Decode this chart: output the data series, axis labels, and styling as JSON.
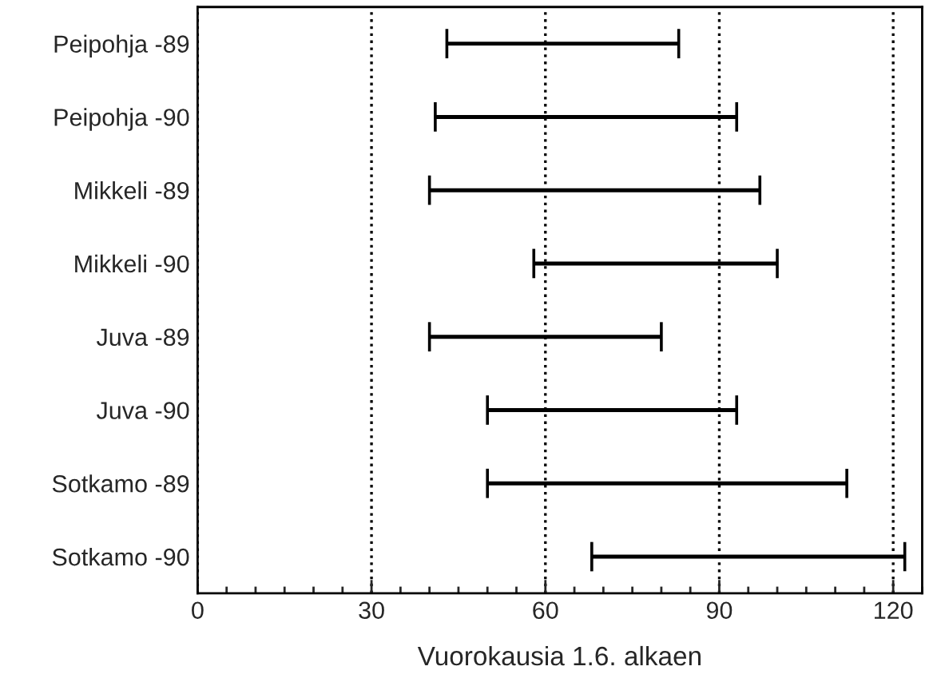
{
  "chart_data": {
    "type": "bar",
    "orientation": "horizontal",
    "xlabel": "Vuorokausia 1.6. alkaen",
    "categories": [
      "Peipohja -89",
      "Peipohja -90",
      "Mikkeli -89",
      "Mikkeli -90",
      "Juva -89",
      "Juva -90",
      "Sotkamo -89",
      "Sotkamo -90"
    ],
    "base": [
      43,
      41,
      40,
      58,
      40,
      50,
      50,
      68
    ],
    "values": [
      40,
      52,
      57,
      42,
      40,
      43,
      62,
      54
    ],
    "color": "#000000",
    "xlim": [
      0,
      125
    ],
    "xticks": [
      0,
      {
        "value": 5,
        "label": null
      },
      {
        "value": 10,
        "label": null
      },
      {
        "value": 15,
        "label": null
      },
      {
        "value": 20,
        "label": null
      },
      {
        "value": 25,
        "label": null
      },
      30,
      {
        "value": 35,
        "label": null
      },
      {
        "value": 40,
        "label": null
      },
      {
        "value": 45,
        "label": null
      },
      {
        "value": 50,
        "label": null
      },
      {
        "value": 55,
        "label": null
      },
      60,
      {
        "value": 65,
        "label": null
      },
      {
        "value": 70,
        "label": null
      },
      {
        "value": 75,
        "label": null
      },
      {
        "value": 80,
        "label": null
      },
      {
        "value": 85,
        "label": null
      },
      90,
      {
        "value": 95,
        "label": null
      },
      {
        "value": 100,
        "label": null
      },
      {
        "value": 105,
        "label": null
      },
      {
        "value": 110,
        "label": null
      },
      {
        "value": 115,
        "label": null
      },
      120,
      {
        "value": 125,
        "label": null
      }
    ],
    "grid": "x"
  }
}
